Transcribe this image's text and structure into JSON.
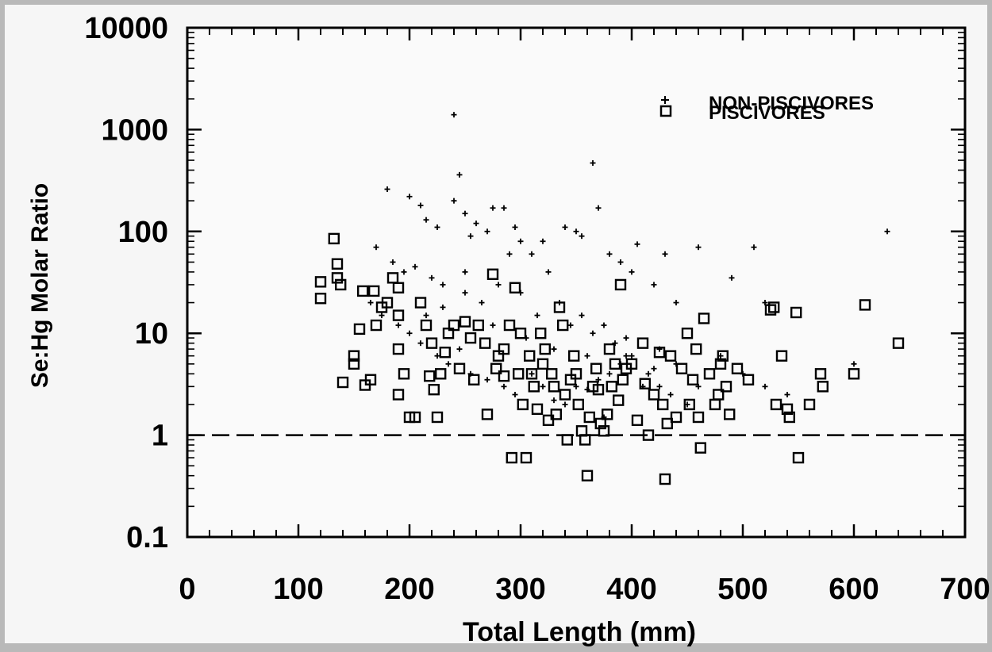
{
  "chart_data": {
    "type": "scatter",
    "title": "",
    "xlabel": "Total Length (mm)",
    "ylabel": "Se:Hg Molar Ratio",
    "xlim": [
      0,
      700
    ],
    "ylim": [
      0.1,
      10000
    ],
    "yscale": "log",
    "xticks": [
      0,
      100,
      200,
      300,
      400,
      500,
      600,
      700
    ],
    "yticks": [
      0.1,
      1,
      10,
      100,
      1000,
      10000
    ],
    "xtick_labels": [
      "0",
      "100",
      "200",
      "300",
      "400",
      "500",
      "600",
      "700"
    ],
    "ytick_labels": [
      "0.1",
      "1",
      "10",
      "100",
      "1000",
      "10000"
    ],
    "grid": false,
    "legend_position": "top-right",
    "reference_line": {
      "y": 1,
      "style": "dashed"
    },
    "series": [
      {
        "name": "NON-PISCIVORES",
        "marker": "plus",
        "color": "#000000",
        "points": [
          [
            180,
            260
          ],
          [
            200,
            220
          ],
          [
            210,
            180
          ],
          [
            215,
            130
          ],
          [
            225,
            110
          ],
          [
            240,
            200
          ],
          [
            245,
            360
          ],
          [
            250,
            150
          ],
          [
            255,
            90
          ],
          [
            260,
            120
          ],
          [
            270,
            100
          ],
          [
            275,
            170
          ],
          [
            285,
            170
          ],
          [
            290,
            60
          ],
          [
            295,
            110
          ],
          [
            300,
            80
          ],
          [
            310,
            60
          ],
          [
            320,
            80
          ],
          [
            325,
            40
          ],
          [
            340,
            110
          ],
          [
            350,
            100
          ],
          [
            355,
            90
          ],
          [
            365,
            470
          ],
          [
            370,
            170
          ],
          [
            380,
            60
          ],
          [
            390,
            50
          ],
          [
            400,
            40
          ],
          [
            405,
            75
          ],
          [
            420,
            30
          ],
          [
            430,
            60
          ],
          [
            440,
            20
          ],
          [
            460,
            70
          ],
          [
            490,
            35
          ],
          [
            510,
            70
          ],
          [
            520,
            20
          ],
          [
            600,
            5
          ],
          [
            630,
            100
          ],
          [
            240,
            1400
          ],
          [
            170,
            70
          ],
          [
            185,
            50
          ],
          [
            195,
            40
          ],
          [
            205,
            45
          ],
          [
            220,
            35
          ],
          [
            230,
            30
          ],
          [
            250,
            25
          ],
          [
            265,
            20
          ],
          [
            280,
            30
          ],
          [
            300,
            25
          ],
          [
            315,
            15
          ],
          [
            335,
            20
          ],
          [
            345,
            12
          ],
          [
            355,
            15
          ],
          [
            365,
            10
          ],
          [
            375,
            12
          ],
          [
            385,
            8
          ],
          [
            395,
            6
          ],
          [
            415,
            4
          ],
          [
            425,
            3
          ],
          [
            435,
            2.5
          ],
          [
            450,
            2
          ],
          [
            165,
            20
          ],
          [
            175,
            15
          ],
          [
            190,
            12
          ],
          [
            200,
            10
          ],
          [
            210,
            8
          ],
          [
            225,
            6
          ],
          [
            235,
            5
          ],
          [
            245,
            7
          ],
          [
            255,
            4
          ],
          [
            270,
            3.5
          ],
          [
            285,
            3
          ],
          [
            295,
            2.5
          ],
          [
            310,
            4
          ],
          [
            320,
            3
          ],
          [
            330,
            2.2
          ],
          [
            340,
            2
          ],
          [
            350,
            3
          ],
          [
            360,
            2.8
          ],
          [
            370,
            3.5
          ],
          [
            380,
            4
          ],
          [
            390,
            5
          ],
          [
            400,
            6
          ],
          [
            410,
            3
          ],
          [
            420,
            4.5
          ],
          [
            440,
            5
          ],
          [
            460,
            3
          ],
          [
            480,
            6
          ],
          [
            500,
            4
          ],
          [
            520,
            3
          ],
          [
            540,
            2.5
          ],
          [
            215,
            15
          ],
          [
            230,
            18
          ],
          [
            250,
            40
          ],
          [
            275,
            12
          ],
          [
            305,
            9
          ],
          [
            330,
            7
          ],
          [
            360,
            6
          ],
          [
            395,
            9
          ],
          [
            425,
            7
          ],
          [
            375,
            1.5
          ]
        ]
      },
      {
        "name": "PISCIVORES",
        "marker": "open-square",
        "color": "#000000",
        "points": [
          [
            120,
            32
          ],
          [
            120,
            22
          ],
          [
            132,
            85
          ],
          [
            135,
            48
          ],
          [
            135,
            35
          ],
          [
            138,
            30
          ],
          [
            140,
            3.3
          ],
          [
            150,
            6
          ],
          [
            150,
            5
          ],
          [
            155,
            11
          ],
          [
            158,
            26
          ],
          [
            160,
            3.1
          ],
          [
            165,
            3.5
          ],
          [
            168,
            26
          ],
          [
            170,
            12
          ],
          [
            175,
            18
          ],
          [
            180,
            20
          ],
          [
            185,
            35
          ],
          [
            190,
            28
          ],
          [
            190,
            15
          ],
          [
            190,
            7
          ],
          [
            190,
            2.5
          ],
          [
            195,
            4
          ],
          [
            200,
            1.5
          ],
          [
            205,
            1.5
          ],
          [
            210,
            20
          ],
          [
            215,
            12
          ],
          [
            218,
            3.8
          ],
          [
            220,
            8
          ],
          [
            222,
            2.8
          ],
          [
            225,
            1.5
          ],
          [
            228,
            4
          ],
          [
            232,
            6.5
          ],
          [
            235,
            10
          ],
          [
            240,
            12
          ],
          [
            245,
            4.5
          ],
          [
            250,
            13
          ],
          [
            255,
            9
          ],
          [
            258,
            3.5
          ],
          [
            262,
            12
          ],
          [
            268,
            8
          ],
          [
            270,
            1.6
          ],
          [
            275,
            38
          ],
          [
            278,
            4.5
          ],
          [
            280,
            6
          ],
          [
            285,
            7
          ],
          [
            285,
            3.8
          ],
          [
            290,
            12
          ],
          [
            292,
            0.6
          ],
          [
            295,
            28
          ],
          [
            298,
            4
          ],
          [
            300,
            10
          ],
          [
            302,
            2
          ],
          [
            305,
            0.6
          ],
          [
            308,
            6
          ],
          [
            310,
            4
          ],
          [
            312,
            3
          ],
          [
            315,
            1.8
          ],
          [
            318,
            10
          ],
          [
            320,
            5
          ],
          [
            322,
            7
          ],
          [
            325,
            1.4
          ],
          [
            328,
            4
          ],
          [
            330,
            3
          ],
          [
            332,
            1.6
          ],
          [
            335,
            18
          ],
          [
            338,
            12
          ],
          [
            340,
            2.5
          ],
          [
            342,
            0.9
          ],
          [
            345,
            3.5
          ],
          [
            348,
            6
          ],
          [
            350,
            4
          ],
          [
            352,
            2
          ],
          [
            355,
            1.1
          ],
          [
            358,
            0.9
          ],
          [
            360,
            0.4
          ],
          [
            362,
            1.5
          ],
          [
            365,
            3
          ],
          [
            368,
            4.5
          ],
          [
            370,
            2.8
          ],
          [
            372,
            1.3
          ],
          [
            375,
            1.1
          ],
          [
            378,
            1.6
          ],
          [
            380,
            7
          ],
          [
            382,
            3
          ],
          [
            385,
            5
          ],
          [
            388,
            2.2
          ],
          [
            390,
            30
          ],
          [
            392,
            3.5
          ],
          [
            395,
            4.5
          ],
          [
            400,
            5
          ],
          [
            405,
            1.4
          ],
          [
            410,
            8
          ],
          [
            412,
            3.2
          ],
          [
            415,
            1
          ],
          [
            420,
            2.5
          ],
          [
            425,
            6.5
          ],
          [
            428,
            2
          ],
          [
            430,
            0.37
          ],
          [
            432,
            1.3
          ],
          [
            435,
            6
          ],
          [
            440,
            1.5
          ],
          [
            445,
            4.5
          ],
          [
            450,
            10
          ],
          [
            452,
            2
          ],
          [
            455,
            3.5
          ],
          [
            458,
            7
          ],
          [
            460,
            1.5
          ],
          [
            462,
            0.75
          ],
          [
            465,
            14
          ],
          [
            470,
            4
          ],
          [
            475,
            2
          ],
          [
            478,
            2.5
          ],
          [
            480,
            5
          ],
          [
            482,
            6
          ],
          [
            485,
            3
          ],
          [
            488,
            1.6
          ],
          [
            495,
            4.5
          ],
          [
            505,
            3.5
          ],
          [
            525,
            17
          ],
          [
            528,
            18
          ],
          [
            530,
            2
          ],
          [
            535,
            6
          ],
          [
            540,
            1.8
          ],
          [
            542,
            1.5
          ],
          [
            548,
            16
          ],
          [
            550,
            0.6
          ],
          [
            560,
            2
          ],
          [
            570,
            4
          ],
          [
            572,
            3
          ],
          [
            600,
            4
          ],
          [
            610,
            19
          ],
          [
            640,
            8
          ]
        ]
      }
    ]
  }
}
